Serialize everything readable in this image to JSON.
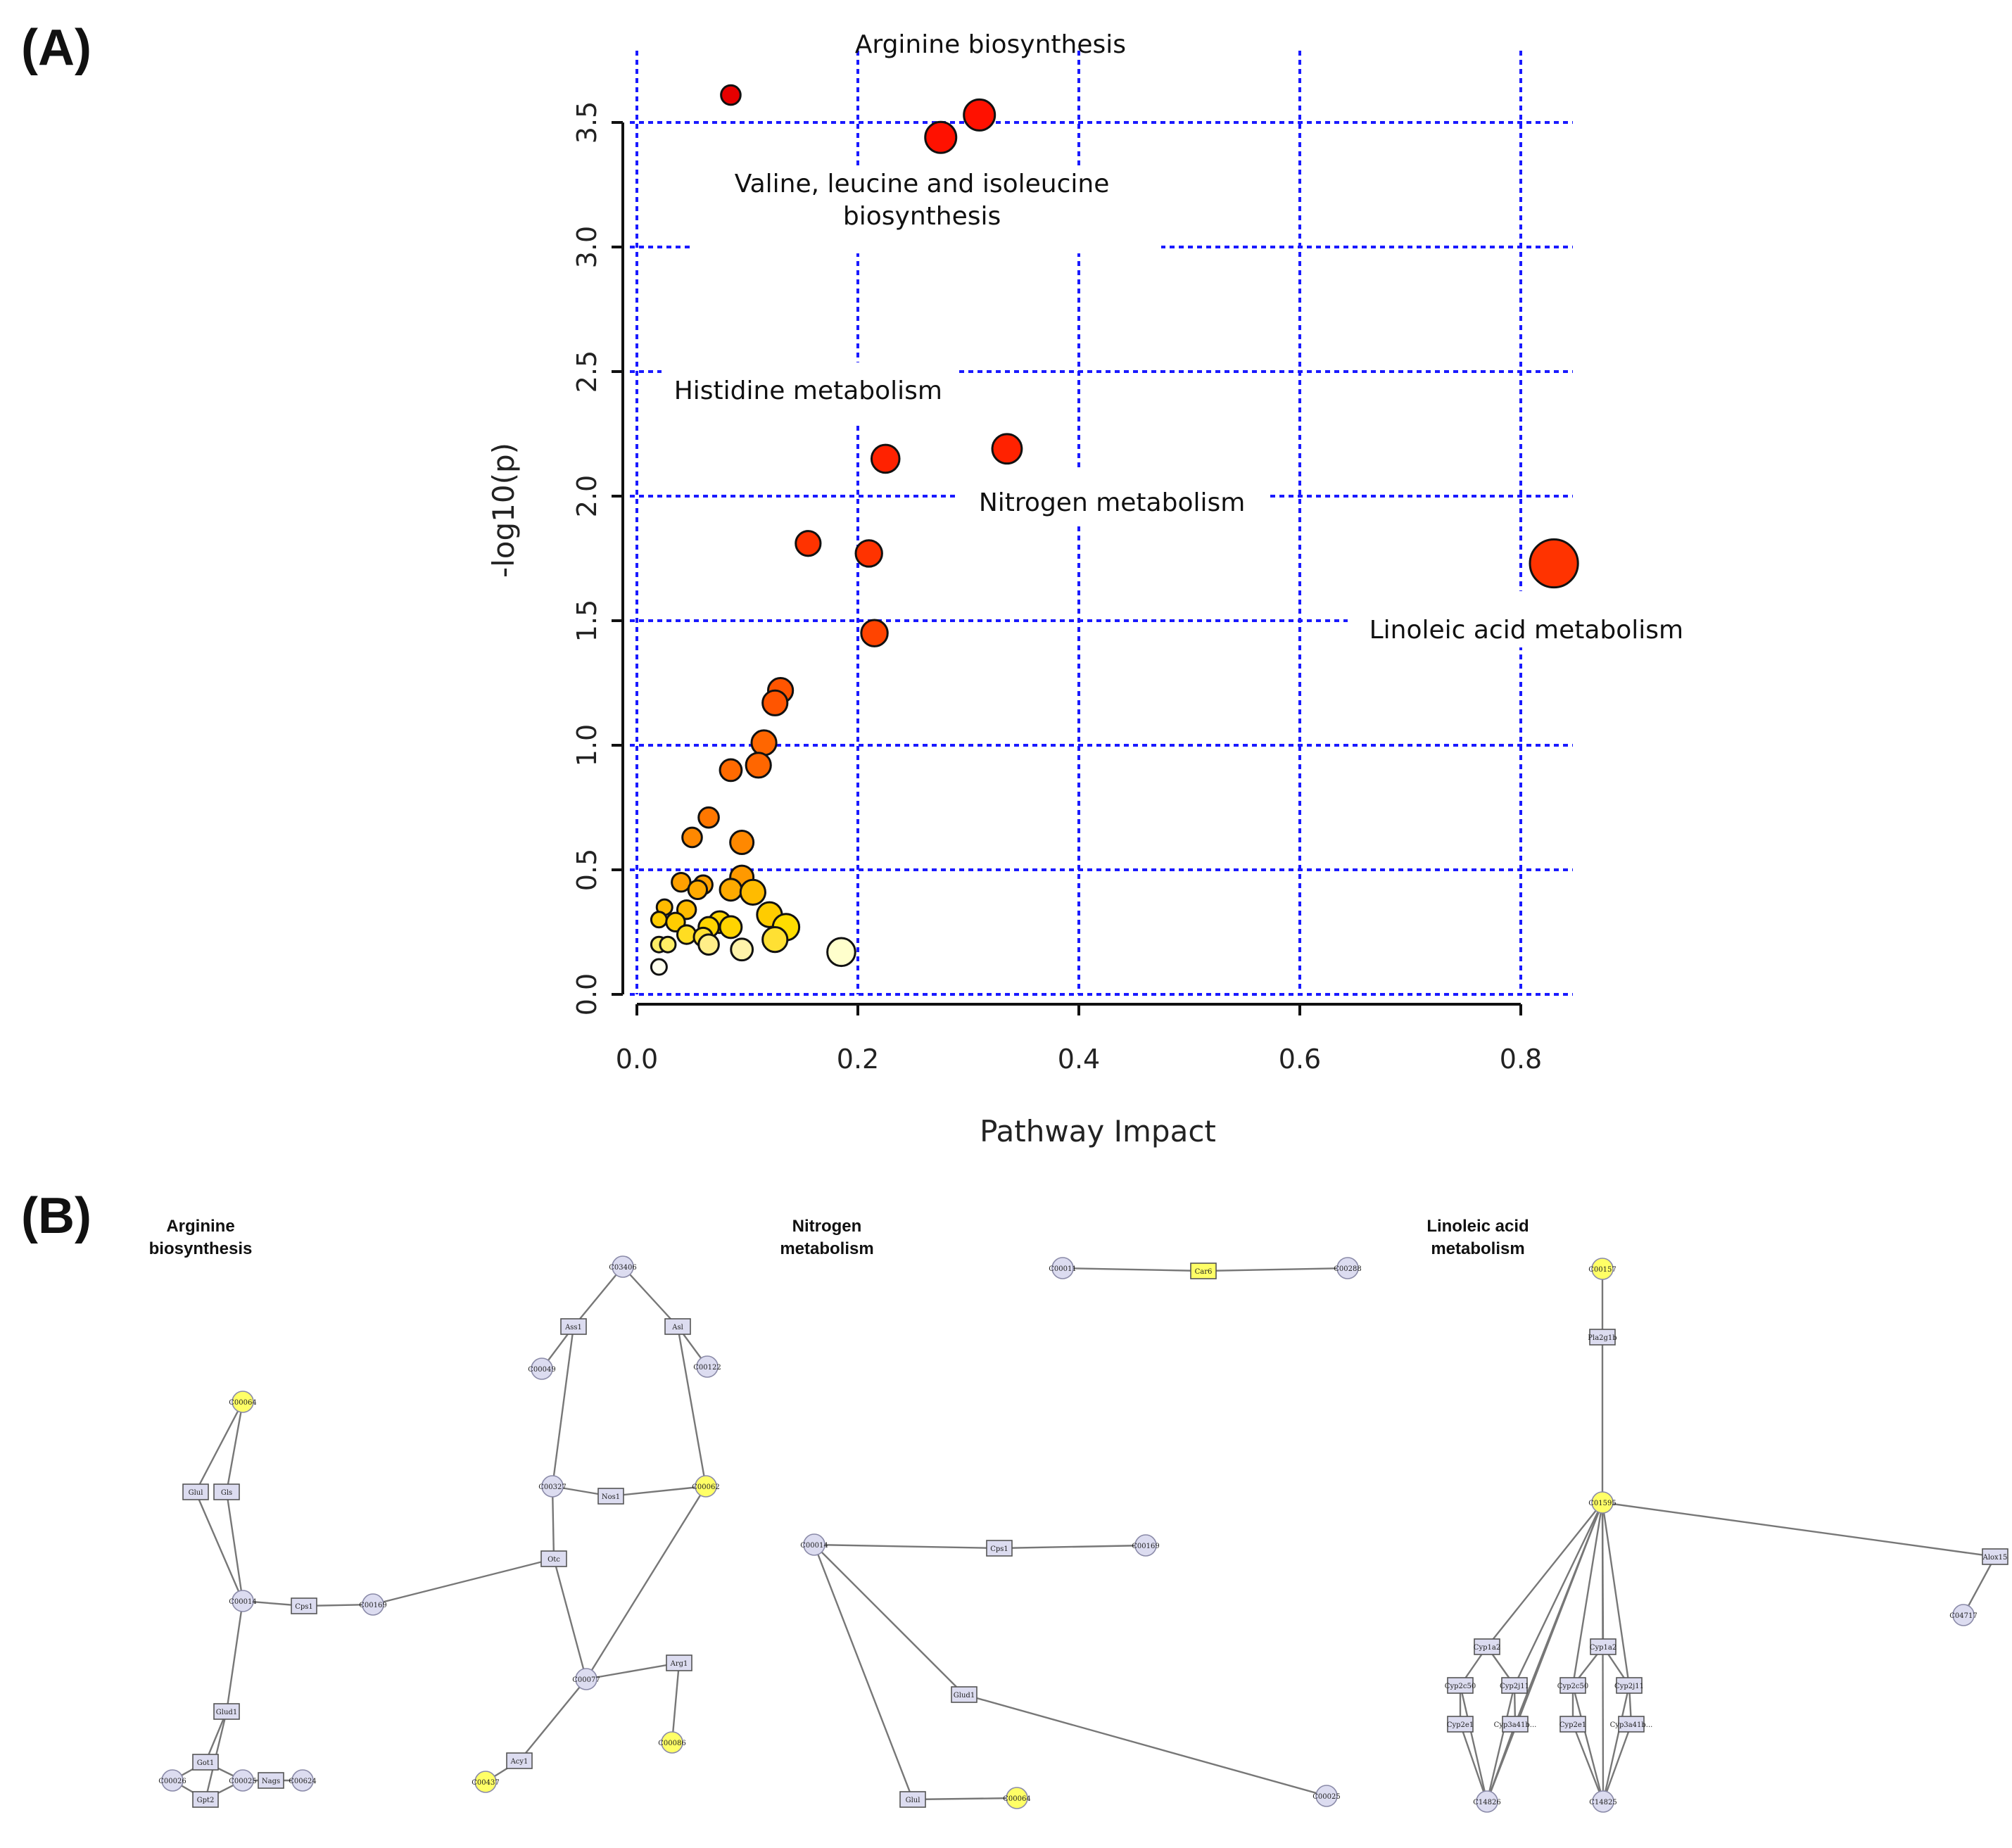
{
  "panels": {
    "a_label": "(A)",
    "b_label": "(B)"
  },
  "chart_data": {
    "type": "scatter",
    "xlabel": "Pathway Impact",
    "ylabel": "-log10(p)",
    "xlim": [
      0.0,
      0.85
    ],
    "ylim": [
      0.0,
      3.65
    ],
    "x_ticks": [
      0.0,
      0.2,
      0.4,
      0.6,
      0.8
    ],
    "x_tick_labels": [
      "0.0",
      "0.2",
      "0.4",
      "0.6",
      "0.8"
    ],
    "y_ticks": [
      0.0,
      0.5,
      1.0,
      1.5,
      2.0,
      2.5,
      3.0,
      3.5
    ],
    "y_tick_labels": [
      "0.0",
      "0.5",
      "1.0",
      "1.5",
      "2.0",
      "2.5",
      "3.0",
      "3.5"
    ],
    "grid": true,
    "encoding": "color and bubble size scale with -log10(p) and pathway impact",
    "points": [
      {
        "x": 0.83,
        "y": 1.73,
        "size": 3.1,
        "color": "#ff3300"
      },
      {
        "x": 0.31,
        "y": 3.53,
        "size": 2.0,
        "color": "#ff1100"
      },
      {
        "x": 0.275,
        "y": 3.44,
        "size": 2.0,
        "color": "#ff1100"
      },
      {
        "x": 0.085,
        "y": 3.61,
        "size": 1.25,
        "color": "#e60000"
      },
      {
        "x": 0.335,
        "y": 2.19,
        "size": 1.9,
        "color": "#ff2200"
      },
      {
        "x": 0.225,
        "y": 2.15,
        "size": 1.8,
        "color": "#ff2200"
      },
      {
        "x": 0.155,
        "y": 1.81,
        "size": 1.6,
        "color": "#ff3300"
      },
      {
        "x": 0.21,
        "y": 1.77,
        "size": 1.7,
        "color": "#ff3300"
      },
      {
        "x": 0.215,
        "y": 1.45,
        "size": 1.7,
        "color": "#ff4400"
      },
      {
        "x": 0.13,
        "y": 1.22,
        "size": 1.6,
        "color": "#ff5500"
      },
      {
        "x": 0.125,
        "y": 1.17,
        "size": 1.6,
        "color": "#ff5500"
      },
      {
        "x": 0.115,
        "y": 1.01,
        "size": 1.6,
        "color": "#ff6600"
      },
      {
        "x": 0.11,
        "y": 0.92,
        "size": 1.6,
        "color": "#ff6600"
      },
      {
        "x": 0.085,
        "y": 0.9,
        "size": 1.4,
        "color": "#ff6a00"
      },
      {
        "x": 0.065,
        "y": 0.71,
        "size": 1.3,
        "color": "#ff7700"
      },
      {
        "x": 0.05,
        "y": 0.63,
        "size": 1.25,
        "color": "#ff8800"
      },
      {
        "x": 0.095,
        "y": 0.61,
        "size": 1.5,
        "color": "#ff8800"
      },
      {
        "x": 0.095,
        "y": 0.47,
        "size": 1.5,
        "color": "#ff9900"
      },
      {
        "x": 0.04,
        "y": 0.45,
        "size": 1.2,
        "color": "#ffa000"
      },
      {
        "x": 0.06,
        "y": 0.44,
        "size": 1.2,
        "color": "#ffa000"
      },
      {
        "x": 0.055,
        "y": 0.42,
        "size": 1.2,
        "color": "#ffaa00"
      },
      {
        "x": 0.085,
        "y": 0.42,
        "size": 1.4,
        "color": "#ffaa00"
      },
      {
        "x": 0.105,
        "y": 0.41,
        "size": 1.6,
        "color": "#ffbb00"
      },
      {
        "x": 0.025,
        "y": 0.35,
        "size": 1.0,
        "color": "#ffbb00"
      },
      {
        "x": 0.045,
        "y": 0.34,
        "size": 1.2,
        "color": "#ffbb00"
      },
      {
        "x": 0.12,
        "y": 0.32,
        "size": 1.6,
        "color": "#ffcc00"
      },
      {
        "x": 0.02,
        "y": 0.3,
        "size": 1.0,
        "color": "#ffcc00"
      },
      {
        "x": 0.035,
        "y": 0.29,
        "size": 1.2,
        "color": "#ffcc00"
      },
      {
        "x": 0.075,
        "y": 0.29,
        "size": 1.4,
        "color": "#ffd400"
      },
      {
        "x": 0.065,
        "y": 0.27,
        "size": 1.3,
        "color": "#ffd400"
      },
      {
        "x": 0.085,
        "y": 0.27,
        "size": 1.4,
        "color": "#ffd400"
      },
      {
        "x": 0.135,
        "y": 0.27,
        "size": 1.7,
        "color": "#ffdd00"
      },
      {
        "x": 0.045,
        "y": 0.24,
        "size": 1.2,
        "color": "#ffdd22"
      },
      {
        "x": 0.06,
        "y": 0.23,
        "size": 1.2,
        "color": "#ffe033"
      },
      {
        "x": 0.125,
        "y": 0.22,
        "size": 1.6,
        "color": "#ffe033"
      },
      {
        "x": 0.02,
        "y": 0.2,
        "size": 1.0,
        "color": "#ffee66"
      },
      {
        "x": 0.028,
        "y": 0.2,
        "size": 1.0,
        "color": "#ffee66"
      },
      {
        "x": 0.065,
        "y": 0.2,
        "size": 1.3,
        "color": "#ffee88"
      },
      {
        "x": 0.095,
        "y": 0.18,
        "size": 1.4,
        "color": "#fff3aa"
      },
      {
        "x": 0.185,
        "y": 0.17,
        "size": 1.8,
        "color": "#ffffcc"
      },
      {
        "x": 0.02,
        "y": 0.11,
        "size": 1.0,
        "color": "#ffffee"
      }
    ],
    "annotations": [
      {
        "text": "Arginine biosynthesis",
        "x": 0.32,
        "y": 3.78
      },
      {
        "text": "Valine, leucine and isoleucine",
        "x": 0.258,
        "y": 3.22
      },
      {
        "text": "biosynthesis",
        "x": 0.258,
        "y": 3.09
      },
      {
        "text": "Histidine metabolism",
        "x": 0.155,
        "y": 2.39
      },
      {
        "text": "Nitrogen metabolism",
        "x": 0.43,
        "y": 1.94
      },
      {
        "text": "Linoleic acid metabolism",
        "x": 0.805,
        "y": 1.43
      }
    ]
  },
  "networks": {
    "arginine": {
      "title_line1": "Arginine",
      "title_line2": "biosynthesis",
      "nodes": [
        {
          "id": "C00064",
          "shape": "circle",
          "highlight": true
        },
        {
          "id": "Glul",
          "shape": "rect"
        },
        {
          "id": "Gls",
          "shape": "rect"
        },
        {
          "id": "C00014",
          "shape": "circle"
        },
        {
          "id": "Cps1",
          "shape": "rect"
        },
        {
          "id": "C00169",
          "shape": "circle"
        },
        {
          "id": "Glud1",
          "shape": "rect"
        },
        {
          "id": "Got1",
          "shape": "rect"
        },
        {
          "id": "Gpt2",
          "shape": "rect"
        },
        {
          "id": "C00026",
          "shape": "circle"
        },
        {
          "id": "C00025",
          "shape": "circle"
        },
        {
          "id": "Nags",
          "shape": "rect"
        },
        {
          "id": "C00624",
          "shape": "circle"
        },
        {
          "id": "C03406",
          "shape": "circle"
        },
        {
          "id": "Ass1",
          "shape": "rect"
        },
        {
          "id": "Asl",
          "shape": "rect"
        },
        {
          "id": "C00049",
          "shape": "circle"
        },
        {
          "id": "C00122",
          "shape": "circle"
        },
        {
          "id": "C00327",
          "shape": "circle"
        },
        {
          "id": "Nos1",
          "shape": "rect"
        },
        {
          "id": "C00062",
          "shape": "circle",
          "highlight": true
        },
        {
          "id": "Otc",
          "shape": "rect"
        },
        {
          "id": "C00077",
          "shape": "circle"
        },
        {
          "id": "Arg1",
          "shape": "rect"
        },
        {
          "id": "C00086",
          "shape": "circle",
          "highlight": true
        },
        {
          "id": "Acy1",
          "shape": "rect"
        },
        {
          "id": "C00437",
          "shape": "circle",
          "highlight": true
        }
      ]
    },
    "nitrogen": {
      "title_line1": "Nitrogen",
      "title_line2": "metabolism",
      "nodes": [
        {
          "id": "C00011",
          "shape": "circle"
        },
        {
          "id": "Car6",
          "shape": "rect",
          "highlight": true
        },
        {
          "id": "C00288",
          "shape": "circle"
        },
        {
          "id": "C00014",
          "shape": "circle"
        },
        {
          "id": "Cps1",
          "shape": "rect"
        },
        {
          "id": "C00169",
          "shape": "circle"
        },
        {
          "id": "Glud1",
          "shape": "rect"
        },
        {
          "id": "Glul",
          "shape": "rect"
        },
        {
          "id": "C00064",
          "shape": "circle",
          "highlight": true
        },
        {
          "id": "C00025",
          "shape": "circle"
        }
      ]
    },
    "linoleic": {
      "title_line1": "Linoleic acid",
      "title_line2": "metabolism",
      "nodes": [
        {
          "id": "C00157",
          "shape": "circle",
          "highlight": true
        },
        {
          "id": "Pla2g1b",
          "shape": "rect"
        },
        {
          "id": "C01595",
          "shape": "circle",
          "highlight": true
        },
        {
          "id": "Alox15",
          "shape": "rect"
        },
        {
          "id": "C04717",
          "shape": "circle"
        },
        {
          "id": "Cyp1a2",
          "shape": "rect"
        },
        {
          "id": "Cyp2c50",
          "shape": "rect"
        },
        {
          "id": "Cyp2j11",
          "shape": "rect"
        },
        {
          "id": "Cyp2e1",
          "shape": "rect"
        },
        {
          "id": "Cyp3a41b...",
          "shape": "rect"
        },
        {
          "id": "C14826",
          "shape": "circle"
        },
        {
          "id": "Cyp1a2",
          "shape": "rect"
        },
        {
          "id": "Cyp2c50",
          "shape": "rect"
        },
        {
          "id": "Cyp2j11",
          "shape": "rect"
        },
        {
          "id": "Cyp2e1",
          "shape": "rect"
        },
        {
          "id": "Cyp3a41b...",
          "shape": "rect"
        },
        {
          "id": "C14825",
          "shape": "circle"
        }
      ]
    }
  },
  "colors": {
    "grid": "#1a1aff",
    "node_fill": "#dcdcf0",
    "node_highlight": "#ffff66",
    "edge": "#777777"
  }
}
